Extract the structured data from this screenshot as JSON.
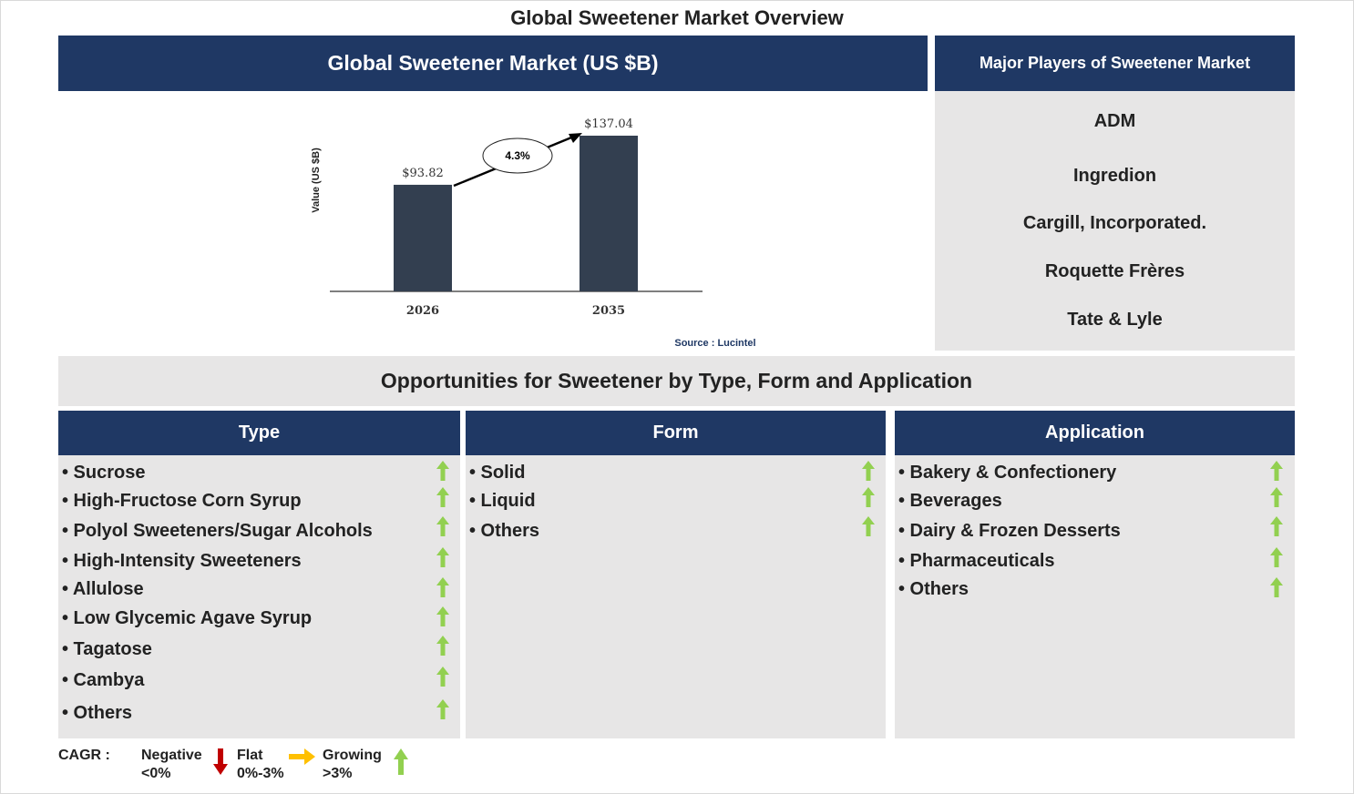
{
  "title": "Global Sweetener Market Overview",
  "market_header": "Global Sweetener Market (US $B)",
  "chart_data": {
    "type": "bar",
    "categories": [
      "2026",
      "2035"
    ],
    "values": [
      93.82,
      137.04
    ],
    "value_labels": [
      "$93.82",
      "$137.04"
    ],
    "ylabel": "Value (US $B)",
    "cagr_label": "4.3%",
    "bar_color": "#333f50",
    "source": "Source : Lucintel"
  },
  "players": {
    "header": "Major Players of Sweetener Market",
    "items": [
      "ADM",
      "Ingredion",
      "Cargill, Incorporated.",
      "Roquette Frères",
      "Tate & Lyle"
    ]
  },
  "opportunities_title": "Opportunities for Sweetener by Type, Form and Application",
  "columns": [
    {
      "header": "Type",
      "items": [
        "• Sucrose",
        "• High-Fructose Corn Syrup",
        "• Polyol Sweeteners/Sugar Alcohols",
        "• High-Intensity Sweeteners",
        "• Allulose",
        "• Low Glycemic Agave Syrup",
        "• Tagatose",
        "• Cambya",
        "• Others"
      ],
      "trend": "growing"
    },
    {
      "header": "Form",
      "items": [
        "• Solid",
        "• Liquid",
        "• Others"
      ],
      "trend": "growing"
    },
    {
      "header": "Application",
      "items": [
        "• Bakery & Confectionery",
        "• Beverages",
        "• Dairy & Frozen Desserts",
        "• Pharmaceuticals",
        "• Others"
      ],
      "trend": "growing"
    }
  ],
  "legend": {
    "label": "CAGR :",
    "negative": [
      "Negative",
      "<0%"
    ],
    "flat": [
      "Flat",
      "0%-3%"
    ],
    "growing": [
      "Growing",
      ">3%"
    ]
  },
  "colors": {
    "navy": "#1f3864",
    "panel": "#e7e6e6",
    "growing": "#92d050",
    "negative": "#c00000",
    "flat": "#ffc000"
  }
}
